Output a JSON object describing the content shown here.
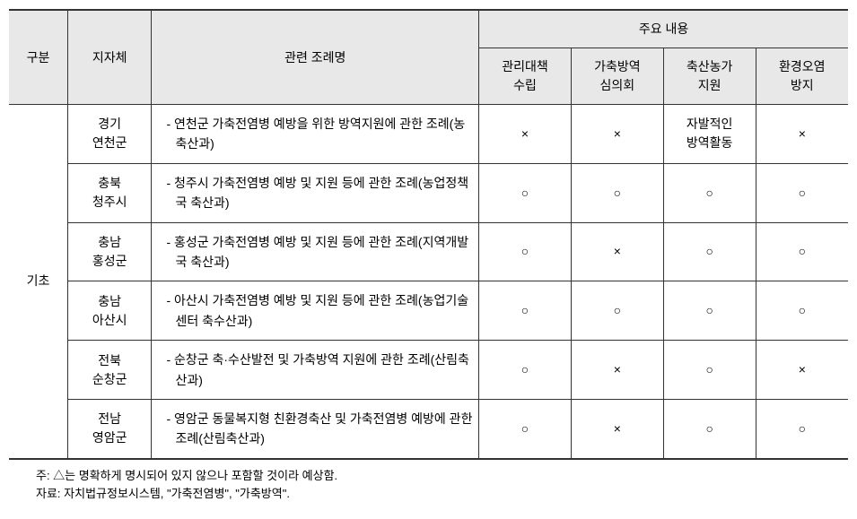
{
  "table": {
    "headers": {
      "col1": "구분",
      "col2": "지자체",
      "col3": "관련 조례명",
      "col4_group": "주요 내용",
      "col4_1_line1": "관리대책",
      "col4_1_line2": "수립",
      "col4_2_line1": "가축방역",
      "col4_2_line2": "심의회",
      "col4_3_line1": "축산농가",
      "col4_3_line2": "지원",
      "col4_4_line1": "환경오염",
      "col4_4_line2": "방지"
    },
    "gubun": "기초",
    "rows": [
      {
        "jijache_line1": "경기",
        "jijache_line2": "연천군",
        "jorye": "- 연천군 가축전염병 예방을 위한 방역지원에 관한 조례(농축산과)",
        "c1": "×",
        "c2": "×",
        "c3_line1": "자발적인",
        "c3_line2": "방역활동",
        "c4": "×"
      },
      {
        "jijache_line1": "충북",
        "jijache_line2": "청주시",
        "jorye": "- 청주시 가축전염병 예방 및 지원 등에 관한 조례(농업정책국 축산과)",
        "c1": "○",
        "c2": "○",
        "c3": "○",
        "c4": "○"
      },
      {
        "jijache_line1": "충남",
        "jijache_line2": "홍성군",
        "jorye": "- 홍성군 가축전염병 예방 및 지원 등에 관한 조례(지역개발국 축산과)",
        "c1": "○",
        "c2": "×",
        "c3": "○",
        "c4": "○"
      },
      {
        "jijache_line1": "충남",
        "jijache_line2": "아산시",
        "jorye": "- 아산시 가축전염병 예방 및 지원 등에 관한 조례(농업기술센터 축수산과)",
        "c1": "○",
        "c2": "○",
        "c3": "○",
        "c4": "○"
      },
      {
        "jijache_line1": "전북",
        "jijache_line2": "순창군",
        "jorye": "- 순창군 축·수산발전 및 가축방역 지원에 관한 조례(산림축산과)",
        "c1": "○",
        "c2": "×",
        "c3": "○",
        "c4": "×"
      },
      {
        "jijache_line1": "전남",
        "jijache_line2": "영암군",
        "jorye": "- 영암군 동물복지형 친환경축산 및 가축전염병 예방에 관한 조례(산림축산과)",
        "c1": "○",
        "c2": "×",
        "c3": "○",
        "c4": "○"
      }
    ]
  },
  "footnotes": {
    "note1": "주: △는 명확하게 명시되어 있지 않으나 포함할 것이라 예상함.",
    "note2": "자료: 자치법규정보시스템, \"가축전염병\", \"가축방역\"."
  },
  "styles": {
    "header_bg": "#e8e8e8",
    "border_color": "#333333",
    "body_font_size": 14,
    "footnote_font_size": 13
  }
}
